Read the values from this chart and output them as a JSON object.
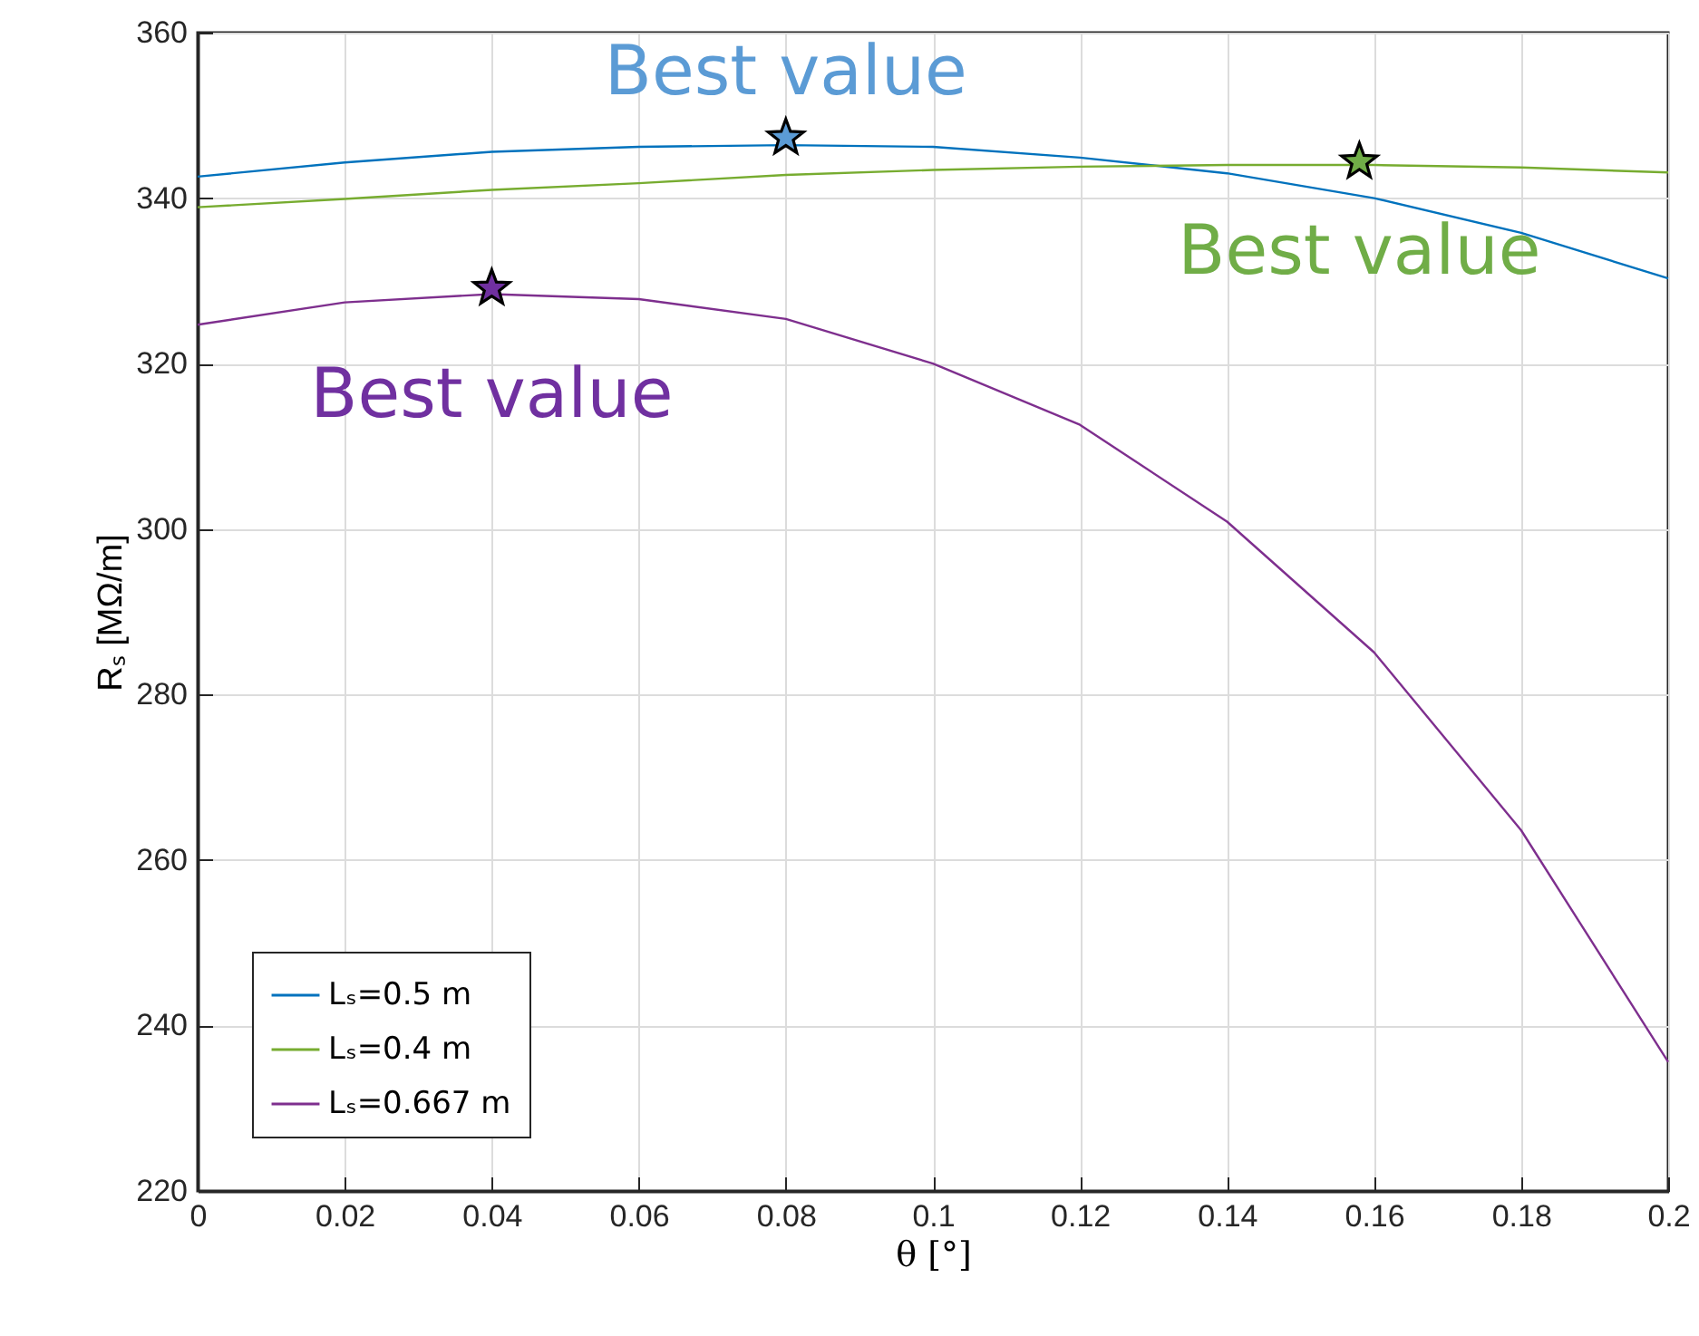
{
  "chart_data": {
    "type": "line",
    "xlabel": "θ [°]",
    "ylabel": "Rₛ [MΩ/m]",
    "x": [
      0,
      0.02,
      0.04,
      0.06,
      0.08,
      0.1,
      0.12,
      0.14,
      0.16,
      0.18,
      0.2
    ],
    "series": [
      {
        "name": "Lₛ=0.5 m",
        "color": "#0072bd",
        "values": [
          342.6,
          344.3,
          345.6,
          346.2,
          346.4,
          346.2,
          344.9,
          343.0,
          340.0,
          335.8,
          330.3
        ]
      },
      {
        "name": "Lₛ=0.4 m",
        "color": "#77ac30",
        "values": [
          338.9,
          339.9,
          341.0,
          341.8,
          342.8,
          343.4,
          343.8,
          344.0,
          344.0,
          343.7,
          343.1
        ]
      },
      {
        "name": "Lₛ=0.667 m",
        "color": "#7e2f8e",
        "values": [
          324.7,
          327.4,
          328.4,
          327.8,
          325.4,
          320.0,
          312.6,
          300.9,
          285.1,
          263.6,
          235.6
        ]
      },
      {
        "type": "scatter",
        "marker": "star",
        "color": "#5b9bd5",
        "x": [
          0.08
        ],
        "values": [
          347.3
        ]
      },
      {
        "type": "scatter",
        "marker": "star",
        "color": "#70ad47",
        "x": [
          0.158
        ],
        "values": [
          344.4
        ]
      },
      {
        "type": "scatter",
        "marker": "star",
        "color": "#7030a0",
        "x": [
          0.04
        ],
        "values": [
          329.1
        ]
      }
    ],
    "annotations": [
      "Best value",
      "Best value",
      "Best value"
    ],
    "xlim": [
      0,
      0.2
    ],
    "ylim": [
      220,
      360
    ],
    "xticks": [
      0,
      0.02,
      0.04,
      0.06,
      0.08,
      0.1,
      0.12,
      0.14,
      0.16,
      0.18,
      0.2
    ],
    "yticks": [
      220,
      240,
      260,
      280,
      300,
      320,
      340,
      360
    ],
    "grid": true,
    "legend": "bottom left",
    "marker": "none",
    "line_style": "solid"
  }
}
